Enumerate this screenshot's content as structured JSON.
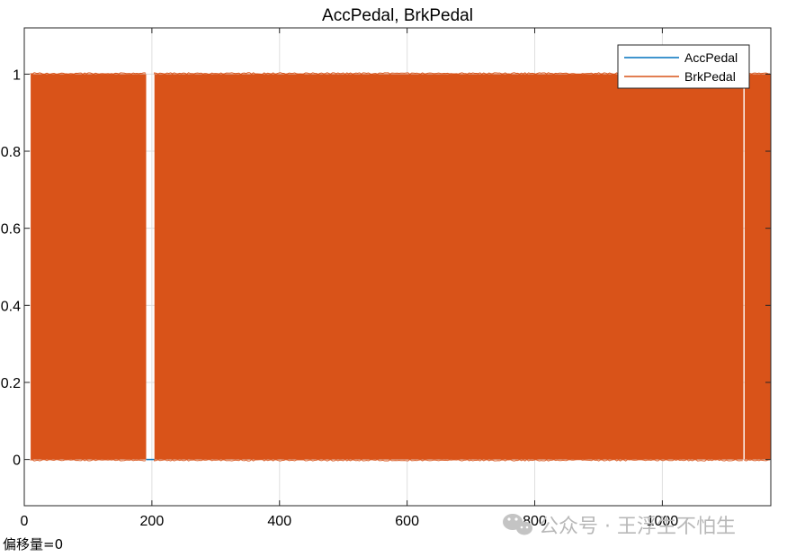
{
  "chart_data": {
    "type": "line",
    "title": "AccPedal, BrkPedal",
    "xlabel": "",
    "ylabel": "",
    "xlim": [
      0,
      1170
    ],
    "ylim": [
      -0.12,
      1.12
    ],
    "xticks": [
      0,
      200,
      400,
      600,
      800,
      1000
    ],
    "xtick_labels": [
      "0",
      "200",
      "400",
      "600",
      "800",
      "1000"
    ],
    "yticks": [
      0,
      0.2,
      0.4,
      0.6,
      0.8,
      1
    ],
    "ytick_labels": [
      "0",
      "0.2",
      "0.4",
      "0.6",
      "0.8",
      "1"
    ],
    "grid": true,
    "legend_position": "top-right",
    "series": [
      {
        "name": "AccPedal",
        "color": "#0072BD",
        "segments": [
          {
            "x_start": 191,
            "x_end": 204,
            "value": 0
          }
        ]
      },
      {
        "name": "BrkPedal",
        "color": "#D95319",
        "segments": [
          {
            "x_start": 10,
            "x_end": 191,
            "value_min": 0,
            "value_max": 1
          },
          {
            "x_start": 204,
            "x_end": 1127,
            "value_min": 0,
            "value_max": 1
          },
          {
            "x_start": 1129,
            "x_end": 1170,
            "value_min": 0,
            "value_max": 1
          }
        ]
      }
    ]
  },
  "watermark": {
    "text": "公众号 · 王浮生不怕生",
    "icon": "wechat-icon"
  },
  "footer": {
    "offset_note": "偏移量=0"
  }
}
